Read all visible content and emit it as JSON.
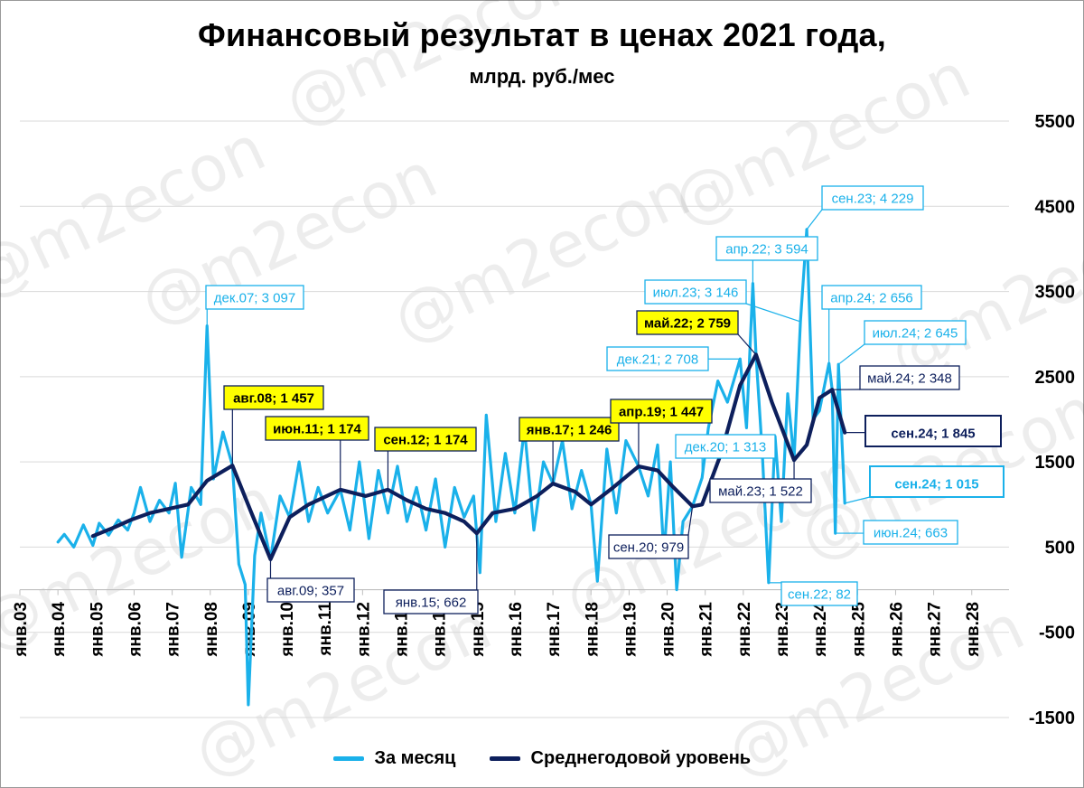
{
  "title": "Финансовый результат в ценах 2021 года,",
  "subtitle": "млрд. руб./мес",
  "watermark": "@m2econ",
  "colors": {
    "monthly": "#1ab1ea",
    "average": "#0d1f5c",
    "highlight_fill": "#ffff00",
    "grid": "#d9d9d9"
  },
  "legend": [
    {
      "label": "За месяц",
      "color": "#1ab1ea"
    },
    {
      "label": "Среднегодовой уровень",
      "color": "#0d1f5c"
    }
  ],
  "chart_data": {
    "type": "line",
    "x_unit": "month",
    "y_ticks": [
      5500,
      4500,
      3500,
      2500,
      1500,
      500,
      -500,
      -1500
    ],
    "y_tick_labels": [
      "5500",
      "4500",
      "3500",
      "2500",
      "1500",
      "500",
      "-500",
      "-1500"
    ],
    "ylim": [
      -1500,
      5500
    ],
    "x_tick_labels": [
      "янв.03",
      "янв.04",
      "янв.05",
      "янв.06",
      "янв.07",
      "янв.08",
      "янв.09",
      "янв.10",
      "янв.11",
      "янв.12",
      "янв.13",
      "янв.14",
      "янв.15",
      "янв.16",
      "янв.17",
      "янв.18",
      "янв.19",
      "янв.20",
      "янв.21",
      "янв.22",
      "янв.23",
      "янв.24",
      "янв.25",
      "янв.26",
      "янв.27",
      "янв.28"
    ],
    "xlim": [
      "2003-01",
      "2028-01"
    ],
    "legend_position": "bottom",
    "grid": true,
    "series": [
      {
        "name": "За месяц",
        "points": [
          [
            "2004-01",
            560
          ],
          [
            "2004-03",
            650
          ],
          [
            "2004-06",
            500
          ],
          [
            "2004-09",
            760
          ],
          [
            "2004-12",
            520
          ],
          [
            "2005-02",
            780
          ],
          [
            "2005-05",
            640
          ],
          [
            "2005-08",
            820
          ],
          [
            "2005-11",
            700
          ],
          [
            "2006-01",
            900
          ],
          [
            "2006-03",
            1200
          ],
          [
            "2006-06",
            800
          ],
          [
            "2006-09",
            1050
          ],
          [
            "2006-12",
            900
          ],
          [
            "2007-02",
            1250
          ],
          [
            "2007-04",
            380
          ],
          [
            "2007-07",
            1200
          ],
          [
            "2007-10",
            1000
          ],
          [
            "2007-12",
            3097
          ],
          [
            "2008-02",
            1300
          ],
          [
            "2008-05",
            1850
          ],
          [
            "2008-08",
            1457
          ],
          [
            "2008-10",
            300
          ],
          [
            "2008-12",
            60
          ],
          [
            "2009-01",
            -1350
          ],
          [
            "2009-03",
            400
          ],
          [
            "2009-05",
            900
          ],
          [
            "2009-08",
            357
          ],
          [
            "2009-11",
            1100
          ],
          [
            "2010-02",
            850
          ],
          [
            "2010-05",
            1500
          ],
          [
            "2010-08",
            800
          ],
          [
            "2010-11",
            1200
          ],
          [
            "2011-02",
            900
          ],
          [
            "2011-06",
            1174
          ],
          [
            "2011-09",
            700
          ],
          [
            "2011-12",
            1500
          ],
          [
            "2012-03",
            600
          ],
          [
            "2012-06",
            1400
          ],
          [
            "2012-09",
            900
          ],
          [
            "2012-12",
            1450
          ],
          [
            "2013-03",
            800
          ],
          [
            "2013-06",
            1200
          ],
          [
            "2013-09",
            700
          ],
          [
            "2013-12",
            1300
          ],
          [
            "2014-03",
            500
          ],
          [
            "2014-06",
            1200
          ],
          [
            "2014-09",
            850
          ],
          [
            "2014-12",
            1100
          ],
          [
            "2015-02",
            200
          ],
          [
            "2015-04",
            2050
          ],
          [
            "2015-07",
            800
          ],
          [
            "2015-10",
            1600
          ],
          [
            "2016-01",
            900
          ],
          [
            "2016-04",
            1900
          ],
          [
            "2016-07",
            700
          ],
          [
            "2016-10",
            1500
          ],
          [
            "2017-01",
            1246
          ],
          [
            "2017-04",
            1750
          ],
          [
            "2017-07",
            950
          ],
          [
            "2017-10",
            1400
          ],
          [
            "2018-01",
            1000
          ],
          [
            "2018-03",
            100
          ],
          [
            "2018-06",
            1650
          ],
          [
            "2018-09",
            900
          ],
          [
            "2018-12",
            1750
          ],
          [
            "2019-04",
            1447
          ],
          [
            "2019-07",
            1100
          ],
          [
            "2019-10",
            1700
          ],
          [
            "2019-12",
            400
          ],
          [
            "2020-02",
            1500
          ],
          [
            "2020-04",
            0
          ],
          [
            "2020-06",
            800
          ],
          [
            "2020-09",
            979
          ],
          [
            "2020-12",
            1313
          ],
          [
            "2021-02",
            1900
          ],
          [
            "2021-05",
            2450
          ],
          [
            "2021-08",
            2200
          ],
          [
            "2021-12",
            2708
          ],
          [
            "2022-02",
            1900
          ],
          [
            "2022-04",
            3594
          ],
          [
            "2022-05",
            2759
          ],
          [
            "2022-07",
            1600
          ],
          [
            "2022-09",
            82
          ],
          [
            "2022-11",
            1800
          ],
          [
            "2023-01",
            800
          ],
          [
            "2023-03",
            2300
          ],
          [
            "2023-05",
            1522
          ],
          [
            "2023-07",
            3146
          ],
          [
            "2023-09",
            4229
          ],
          [
            "2023-11",
            2000
          ],
          [
            "2024-01",
            2100
          ],
          [
            "2024-04",
            2656
          ],
          [
            "2024-05",
            2348
          ],
          [
            "2024-06",
            663
          ],
          [
            "2024-07",
            2645
          ],
          [
            "2024-09",
            1015
          ]
        ]
      },
      {
        "name": "Среднегодовой уровень",
        "points": [
          [
            "2004-12",
            630
          ],
          [
            "2005-06",
            720
          ],
          [
            "2005-12",
            820
          ],
          [
            "2006-06",
            900
          ],
          [
            "2006-12",
            950
          ],
          [
            "2007-06",
            1000
          ],
          [
            "2007-12",
            1280
          ],
          [
            "2008-08",
            1457
          ],
          [
            "2009-02",
            900
          ],
          [
            "2009-08",
            357
          ],
          [
            "2010-02",
            850
          ],
          [
            "2010-08",
            1000
          ],
          [
            "2011-06",
            1174
          ],
          [
            "2012-02",
            1100
          ],
          [
            "2012-09",
            1174
          ],
          [
            "2013-03",
            1050
          ],
          [
            "2013-09",
            950
          ],
          [
            "2014-03",
            900
          ],
          [
            "2014-09",
            800
          ],
          [
            "2015-01",
            662
          ],
          [
            "2015-06",
            900
          ],
          [
            "2016-01",
            950
          ],
          [
            "2016-08",
            1100
          ],
          [
            "2017-01",
            1246
          ],
          [
            "2017-08",
            1150
          ],
          [
            "2018-01",
            1000
          ],
          [
            "2018-08",
            1200
          ],
          [
            "2019-04",
            1447
          ],
          [
            "2019-10",
            1400
          ],
          [
            "2020-03",
            1200
          ],
          [
            "2020-09",
            979
          ],
          [
            "2020-12",
            1000
          ],
          [
            "2021-06",
            1600
          ],
          [
            "2021-12",
            2400
          ],
          [
            "2022-05",
            2759
          ],
          [
            "2022-10",
            2200
          ],
          [
            "2023-05",
            1522
          ],
          [
            "2023-09",
            1700
          ],
          [
            "2024-01",
            2250
          ],
          [
            "2024-05",
            2348
          ],
          [
            "2024-09",
            1845
          ]
        ]
      }
    ],
    "annotations": [
      {
        "label": "дек.07; 3 097",
        "x": "2007-12",
        "y": 3097,
        "style": "monthly"
      },
      {
        "label": "авг.08; 1 457",
        "x": "2008-08",
        "y": 1457,
        "style": "avg-yellow"
      },
      {
        "label": "авг.09; 357",
        "x": "2009-08",
        "y": 357,
        "style": "avg"
      },
      {
        "label": "июн.11; 1 174",
        "x": "2011-06",
        "y": 1174,
        "style": "avg-yellow"
      },
      {
        "label": "сен.12; 1 174",
        "x": "2012-09",
        "y": 1174,
        "style": "avg-yellow"
      },
      {
        "label": "янв.15; 662",
        "x": "2015-01",
        "y": 662,
        "style": "avg"
      },
      {
        "label": "янв.17; 1 246",
        "x": "2017-01",
        "y": 1246,
        "style": "avg-yellow"
      },
      {
        "label": "апр.19; 1 447",
        "x": "2019-04",
        "y": 1447,
        "style": "avg-yellow"
      },
      {
        "label": "сен.20; 979",
        "x": "2020-09",
        "y": 979,
        "style": "avg"
      },
      {
        "label": "дек.20; 1 313",
        "x": "2020-12",
        "y": 1313,
        "style": "monthly"
      },
      {
        "label": "дек.21; 2 708",
        "x": "2021-12",
        "y": 2708,
        "style": "monthly"
      },
      {
        "label": "апр.22; 3 594",
        "x": "2022-04",
        "y": 3594,
        "style": "monthly"
      },
      {
        "label": "май.22; 2 759",
        "x": "2022-05",
        "y": 2759,
        "style": "avg-yellow"
      },
      {
        "label": "сен.22; 82",
        "x": "2022-09",
        "y": 82,
        "style": "monthly"
      },
      {
        "label": "май.23; 1 522",
        "x": "2023-05",
        "y": 1522,
        "style": "avg"
      },
      {
        "label": "июл.23; 3 146",
        "x": "2023-07",
        "y": 3146,
        "style": "monthly"
      },
      {
        "label": "сен.23; 4 229",
        "x": "2023-09",
        "y": 4229,
        "style": "monthly"
      },
      {
        "label": "апр.24; 2 656",
        "x": "2024-04",
        "y": 2656,
        "style": "monthly"
      },
      {
        "label": "май.24; 2 348",
        "x": "2024-05",
        "y": 2348,
        "style": "avg"
      },
      {
        "label": "июн.24; 663",
        "x": "2024-06",
        "y": 663,
        "style": "monthly"
      },
      {
        "label": "июл.24; 2 645",
        "x": "2024-07",
        "y": 2645,
        "style": "monthly"
      },
      {
        "label": "сен.24; 1 845",
        "x": "2024-09",
        "y": 1845,
        "style": "avg-big"
      },
      {
        "label": "сен.24; 1 015",
        "x": "2024-09",
        "y": 1015,
        "style": "monthly-big"
      }
    ]
  }
}
